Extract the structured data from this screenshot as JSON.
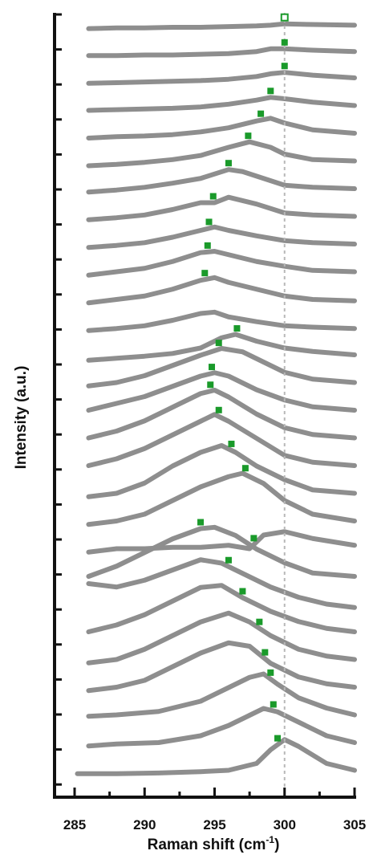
{
  "chart_data": {
    "type": "line",
    "xlabel": "Raman shift (cm",
    "xlabel_sup": "-1",
    "xlabel_close": ")",
    "ylabel": "Intensity (a.u.)",
    "xlim": [
      285,
      305
    ],
    "x_ticks": [
      "285",
      "290",
      "295",
      "300",
      "305"
    ],
    "reference_line_x": 300,
    "series_color": "#8e8e8e",
    "marker_color": "#1a9a2a",
    "grid": false,
    "stacked_offset": true,
    "series": [
      {
        "x": [
          285.2,
          288,
          291,
          294,
          296,
          298,
          299,
          300,
          301,
          303,
          305
        ],
        "y": [
          0.05,
          0.05,
          0.06,
          0.08,
          0.1,
          0.2,
          0.4,
          0.55,
          0.45,
          0.2,
          0.1
        ],
        "peak": 299.5
      },
      {
        "x": [
          286,
          288,
          291,
          294,
          296,
          297.5,
          298.5,
          299.5,
          301,
          303,
          305
        ],
        "y": [
          0.05,
          0.08,
          0.1,
          0.2,
          0.35,
          0.5,
          0.6,
          0.55,
          0.4,
          0.2,
          0.1
        ],
        "peak": 299.2
      },
      {
        "x": [
          286,
          288,
          291,
          294,
          296,
          297.5,
          298.5,
          299.5,
          301,
          303,
          305
        ],
        "y": [
          0.08,
          0.1,
          0.15,
          0.3,
          0.5,
          0.65,
          0.7,
          0.55,
          0.35,
          0.2,
          0.1
        ],
        "peak": 299.0
      },
      {
        "x": [
          286,
          288,
          290,
          292,
          294,
          296,
          297.5,
          299,
          301,
          303,
          305
        ],
        "y": [
          0.05,
          0.1,
          0.2,
          0.4,
          0.6,
          0.75,
          0.7,
          0.45,
          0.25,
          0.15,
          0.1
        ],
        "peak": 298.6
      },
      {
        "x": [
          286,
          288,
          290,
          292,
          294,
          296,
          297.5,
          299,
          301,
          303,
          305
        ],
        "y": [
          0.05,
          0.1,
          0.25,
          0.45,
          0.65,
          0.78,
          0.65,
          0.45,
          0.25,
          0.15,
          0.1
        ],
        "peak": 298.2
      },
      {
        "x": [
          286,
          288,
          290,
          292,
          294,
          295.5,
          297,
          299,
          301,
          303,
          305
        ],
        "y": [
          0.1,
          0.2,
          0.35,
          0.55,
          0.75,
          0.78,
          0.6,
          0.4,
          0.25,
          0.15,
          0.1
        ],
        "peak": 297.0
      },
      {
        "x": [
          286,
          288,
          290,
          292,
          294,
          295.5,
          297,
          299,
          301,
          303,
          305
        ],
        "y": [
          0.4,
          0.35,
          0.45,
          0.6,
          0.75,
          0.7,
          0.55,
          0.35,
          0.2,
          0.1,
          0.05
        ],
        "peak": 296.0
      },
      {
        "x": [
          286,
          288,
          290,
          292,
          294,
          295,
          296.5,
          298,
          300,
          302,
          305
        ],
        "y": [
          0.1,
          0.25,
          0.45,
          0.65,
          0.8,
          0.82,
          0.7,
          0.5,
          0.3,
          0.15,
          0.1
        ],
        "peak": 294.0
      },
      {
        "x": [
          286,
          288,
          290,
          292,
          294,
          296,
          297.5,
          298.5,
          300,
          302,
          305
        ],
        "y": [
          0.05,
          0.1,
          0.1,
          0.12,
          0.12,
          0.15,
          0.1,
          0.3,
          0.35,
          0.25,
          0.15
        ],
        "peak": 297.8
      },
      {
        "x": [
          286,
          288,
          290,
          292,
          294,
          296,
          297,
          298.5,
          300,
          302,
          305
        ],
        "y": [
          0.05,
          0.1,
          0.2,
          0.4,
          0.6,
          0.75,
          0.8,
          0.65,
          0.4,
          0.2,
          0.1
        ],
        "peak": 297.2
      },
      {
        "x": [
          286,
          288,
          290,
          292,
          294,
          295.5,
          296.5,
          298,
          300,
          302,
          305
        ],
        "y": [
          0.05,
          0.1,
          0.25,
          0.5,
          0.7,
          0.8,
          0.7,
          0.5,
          0.3,
          0.15,
          0.1
        ],
        "peak": 296.2
      },
      {
        "x": [
          286,
          288,
          290,
          292,
          294,
          295,
          296,
          298,
          300,
          302,
          305
        ],
        "y": [
          0.1,
          0.2,
          0.35,
          0.55,
          0.75,
          0.85,
          0.75,
          0.5,
          0.25,
          0.15,
          0.1
        ],
        "peak": 295.3
      },
      {
        "x": [
          286,
          288,
          290,
          292,
          294,
          295,
          296,
          298,
          300,
          302,
          305
        ],
        "y": [
          0.1,
          0.2,
          0.35,
          0.55,
          0.75,
          0.8,
          0.7,
          0.45,
          0.25,
          0.15,
          0.1
        ],
        "peak": 294.7
      },
      {
        "x": [
          286,
          288,
          290,
          292,
          294,
          295,
          296,
          298,
          300,
          302,
          305
        ],
        "y": [
          0.1,
          0.2,
          0.3,
          0.45,
          0.6,
          0.65,
          0.6,
          0.4,
          0.25,
          0.15,
          0.1
        ],
        "peak": 294.8
      },
      {
        "x": [
          286,
          288,
          290,
          292,
          294,
          295.5,
          297,
          298.5,
          300,
          302,
          305
        ],
        "y": [
          0.05,
          0.1,
          0.2,
          0.35,
          0.5,
          0.6,
          0.55,
          0.4,
          0.25,
          0.15,
          0.1
        ],
        "peak": 295.3
      },
      {
        "x": [
          286,
          288,
          290,
          292,
          294,
          295.5,
          296.5,
          298,
          300,
          302,
          305
        ],
        "y": [
          0.02,
          0.05,
          0.08,
          0.12,
          0.2,
          0.35,
          0.4,
          0.3,
          0.2,
          0.15,
          0.1
        ],
        "peak": 296.6
      },
      {
        "x": [
          286,
          288,
          290,
          292,
          294,
          295,
          296,
          298,
          300,
          302,
          305
        ],
        "y": [
          0.05,
          0.08,
          0.12,
          0.2,
          0.3,
          0.32,
          0.25,
          0.18,
          0.12,
          0.1,
          0.08
        ],
        "peak": null
      },
      {
        "x": [
          286,
          288,
          290,
          292,
          294,
          295,
          296,
          298,
          300,
          302,
          305
        ],
        "y": [
          0.05,
          0.1,
          0.15,
          0.25,
          0.38,
          0.42,
          0.35,
          0.25,
          0.15,
          0.1,
          0.08
        ],
        "peak": 294.3
      },
      {
        "x": [
          286,
          288,
          290,
          292,
          294,
          295,
          296,
          298,
          300,
          302,
          305
        ],
        "y": [
          0.05,
          0.1,
          0.15,
          0.25,
          0.38,
          0.4,
          0.35,
          0.25,
          0.18,
          0.12,
          0.1
        ],
        "peak": 294.5
      },
      {
        "x": [
          286,
          288,
          290,
          292,
          294,
          295,
          296,
          298,
          300,
          302,
          305
        ],
        "y": [
          0.05,
          0.08,
          0.12,
          0.2,
          0.3,
          0.35,
          0.3,
          0.22,
          0.15,
          0.12,
          0.1
        ],
        "peak": 294.6
      },
      {
        "x": [
          286,
          288,
          290,
          292,
          294,
          295,
          296,
          298,
          300,
          302,
          305
        ],
        "y": [
          0.05,
          0.08,
          0.12,
          0.2,
          0.3,
          0.3,
          0.38,
          0.28,
          0.15,
          0.12,
          0.1
        ],
        "peak": 294.9
      },
      {
        "x": [
          286,
          288,
          290,
          292,
          294,
          296,
          297,
          298.5,
          300,
          302,
          305
        ],
        "y": [
          0.05,
          0.08,
          0.12,
          0.18,
          0.25,
          0.38,
          0.35,
          0.25,
          0.15,
          0.12,
          0.1
        ],
        "peak": 296.0
      },
      {
        "x": [
          286,
          288,
          290,
          292,
          294,
          296,
          297.5,
          299,
          300,
          302,
          305
        ],
        "y": [
          0.03,
          0.05,
          0.08,
          0.12,
          0.18,
          0.3,
          0.38,
          0.3,
          0.2,
          0.12,
          0.1
        ],
        "peak": 297.4
      },
      {
        "x": [
          286,
          288,
          290,
          292,
          294,
          296,
          298,
          299,
          300,
          302,
          305
        ],
        "y": [
          0.03,
          0.05,
          0.06,
          0.08,
          0.12,
          0.18,
          0.28,
          0.32,
          0.25,
          0.15,
          0.1
        ],
        "peak": 298.3
      },
      {
        "x": [
          286,
          288,
          290,
          292,
          294,
          296,
          298,
          299,
          300,
          302,
          305
        ],
        "y": [
          0.03,
          0.04,
          0.05,
          0.06,
          0.08,
          0.12,
          0.18,
          0.22,
          0.2,
          0.15,
          0.1
        ],
        "peak": 299.0
      },
      {
        "x": [
          286,
          288,
          290,
          292,
          294,
          296,
          298,
          299,
          300,
          302,
          305
        ],
        "y": [
          0.02,
          0.03,
          0.04,
          0.05,
          0.06,
          0.08,
          0.12,
          0.16,
          0.18,
          0.14,
          0.1
        ],
        "peak": 300.0
      },
      {
        "x": [
          286,
          288,
          290,
          292,
          294,
          296,
          298,
          299,
          300,
          302,
          305
        ],
        "y": [
          0.02,
          0.02,
          0.03,
          0.03,
          0.04,
          0.05,
          0.08,
          0.12,
          0.12,
          0.1,
          0.08
        ],
        "peak": 300.0
      },
      {
        "x": [
          286,
          288,
          290,
          292,
          294,
          296,
          298,
          299,
          300,
          302,
          305
        ],
        "y": [
          0.01,
          0.02,
          0.02,
          0.03,
          0.03,
          0.04,
          0.05,
          0.06,
          0.08,
          0.07,
          0.06
        ],
        "peak": 300.0
      }
    ]
  }
}
